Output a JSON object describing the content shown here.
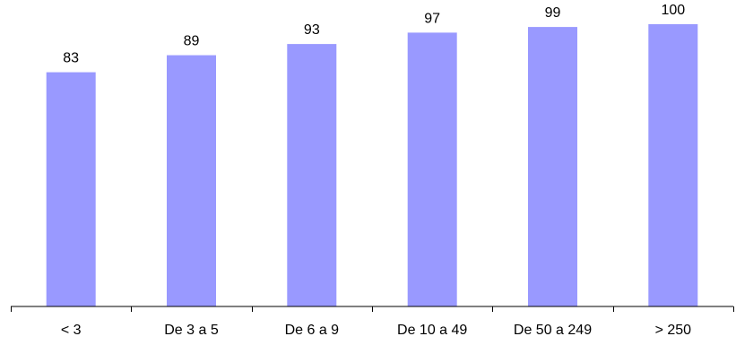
{
  "chart_data": {
    "type": "bar",
    "title": "",
    "xlabel": "",
    "ylabel": "",
    "categories": [
      "< 3",
      "De 3 a 5",
      "De 6 a 9",
      "De 10 a 49",
      "De 50 a 249",
      "> 250"
    ],
    "values": [
      83,
      89,
      93,
      97,
      99,
      100
    ],
    "ylim": [
      0,
      100
    ],
    "data_labels": true,
    "grid": false,
    "legend": "none",
    "bar_color": "#9999ff",
    "axis_color": "#000000"
  }
}
